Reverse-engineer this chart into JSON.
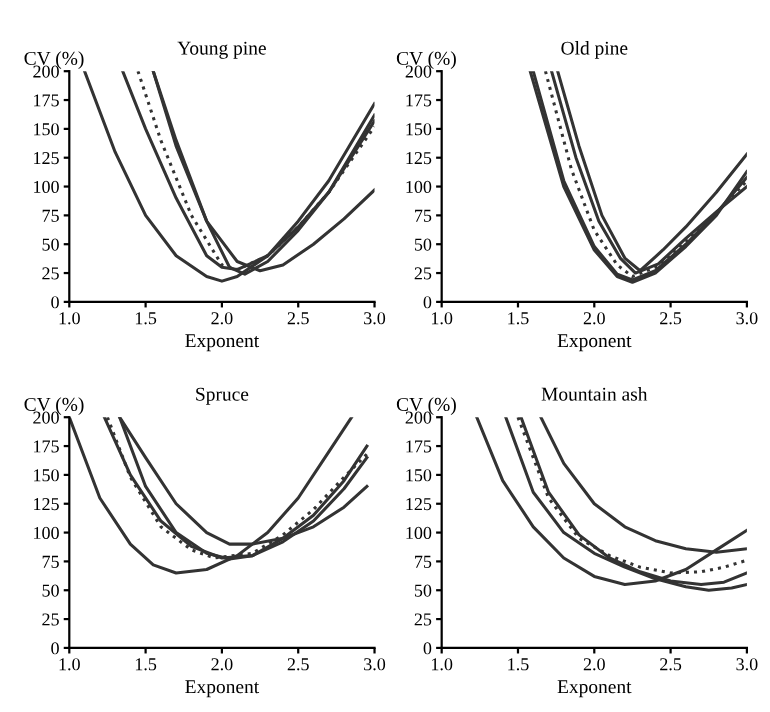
{
  "chart_data": [
    {
      "type": "line",
      "title": "Young pine",
      "xlabel": "Exponent",
      "ylabel": "CV (%)",
      "xlim": [
        1.0,
        3.0
      ],
      "xticks": [
        {
          "value": 1.0,
          "label": "1.0"
        },
        {
          "value": 1.5,
          "label": "1.5"
        },
        {
          "value": 2.0,
          "label": "2.0"
        },
        {
          "value": 2.5,
          "label": "2.5"
        },
        {
          "value": 3.0,
          "label": "3.0"
        }
      ],
      "ylim": [
        0,
        200
      ],
      "yticks": [
        0,
        25,
        50,
        75,
        100,
        125,
        150,
        175,
        200
      ],
      "grid": false,
      "legend": false,
      "series": [
        {
          "color": "#333333",
          "line_style": "solid",
          "x": [
            1.1,
            1.3,
            1.5,
            1.7,
            1.9,
            2.0,
            2.1,
            2.3,
            2.5,
            2.7,
            3.0
          ],
          "values": [
            200,
            130,
            75,
            40,
            22,
            18,
            22,
            40,
            70,
            105,
            172
          ]
        },
        {
          "color": "#333333",
          "line_style": "solid",
          "x": [
            1.35,
            1.5,
            1.7,
            1.9,
            2.0,
            2.1,
            2.3,
            2.5,
            2.7,
            3.0
          ],
          "values": [
            200,
            150,
            90,
            40,
            30,
            28,
            40,
            65,
            95,
            162
          ]
        },
        {
          "color": "#333333",
          "line_style": "dotted",
          "x": [
            1.45,
            1.6,
            1.8,
            2.0,
            2.1,
            2.3,
            2.5,
            2.7,
            3.0
          ],
          "values": [
            200,
            140,
            75,
            32,
            28,
            40,
            65,
            95,
            152
          ]
        },
        {
          "color": "#333333",
          "line_style": "solid",
          "x": [
            1.55,
            1.7,
            1.9,
            2.05,
            2.15,
            2.3,
            2.5,
            2.7,
            3.0
          ],
          "values": [
            200,
            140,
            70,
            30,
            24,
            35,
            62,
            95,
            157
          ]
        },
        {
          "color": "#333333",
          "line_style": "solid",
          "x": [
            1.55,
            1.7,
            1.9,
            2.1,
            2.25,
            2.4,
            2.6,
            2.8,
            3.0
          ],
          "values": [
            200,
            135,
            70,
            35,
            27,
            32,
            50,
            72,
            97
          ]
        }
      ]
    },
    {
      "type": "line",
      "title": "Old pine",
      "xlabel": "Exponent",
      "ylabel": "CV (%)",
      "xlim": [
        1.0,
        3.0
      ],
      "xticks": [
        {
          "value": 1.0,
          "label": "1.0"
        },
        {
          "value": 1.5,
          "label": "1.5"
        },
        {
          "value": 2.0,
          "label": "2.0"
        },
        {
          "value": 2.5,
          "label": "2.5"
        },
        {
          "value": 3.0,
          "label": "3.0"
        }
      ],
      "ylim": [
        0,
        200
      ],
      "yticks": [
        0,
        25,
        50,
        75,
        100,
        125,
        150,
        175,
        200
      ],
      "grid": false,
      "legend": false,
      "series": [
        {
          "color": "#333333",
          "line_style": "solid",
          "x": [
            1.58,
            1.8,
            2.0,
            2.15,
            2.25,
            2.4,
            2.6,
            2.8,
            3.0
          ],
          "values": [
            200,
            100,
            45,
            22,
            17,
            25,
            48,
            75,
            113
          ]
        },
        {
          "color": "#333333",
          "line_style": "solid",
          "x": [
            1.6,
            1.8,
            2.0,
            2.15,
            2.25,
            2.4,
            2.6,
            2.8,
            3.0
          ],
          "values": [
            200,
            105,
            48,
            24,
            19,
            27,
            50,
            77,
            108
          ]
        },
        {
          "color": "#333333",
          "line_style": "dotted",
          "x": [
            1.68,
            1.85,
            2.0,
            2.15,
            2.25,
            2.4,
            2.6,
            2.8,
            3.0
          ],
          "values": [
            200,
            115,
            62,
            32,
            22,
            30,
            52,
            77,
            105
          ]
        },
        {
          "color": "#333333",
          "line_style": "solid",
          "x": [
            1.72,
            1.88,
            2.03,
            2.17,
            2.27,
            2.42,
            2.6,
            2.8,
            3.0
          ],
          "values": [
            200,
            125,
            70,
            38,
            25,
            33,
            55,
            78,
            100
          ]
        },
        {
          "color": "#333333",
          "line_style": "solid",
          "x": [
            1.76,
            1.9,
            2.05,
            2.2,
            2.3,
            2.45,
            2.6,
            2.8,
            3.0
          ],
          "values": [
            200,
            135,
            75,
            38,
            27,
            45,
            65,
            95,
            128
          ]
        }
      ]
    },
    {
      "type": "line",
      "title": "Spruce",
      "xlabel": "Exponent",
      "ylabel": "CV (%)",
      "xlim": [
        1.0,
        3.0
      ],
      "xticks": [
        {
          "value": 1.0,
          "label": "1.0"
        },
        {
          "value": 1.5,
          "label": "1.5"
        },
        {
          "value": 2.0,
          "label": "2.0"
        },
        {
          "value": 2.5,
          "label": "2.5"
        },
        {
          "value": 3.0,
          "label": "3.0"
        }
      ],
      "ylim": [
        0,
        200
      ],
      "yticks": [
        0,
        25,
        50,
        75,
        100,
        125,
        150,
        175,
        200
      ],
      "grid": false,
      "legend": false,
      "series": [
        {
          "color": "#333333",
          "line_style": "solid",
          "x": [
            1.0,
            1.2,
            1.4,
            1.55,
            1.7,
            1.9,
            2.1,
            2.3,
            2.5,
            2.7,
            2.85
          ],
          "values": [
            200,
            130,
            90,
            72,
            65,
            68,
            80,
            100,
            130,
            170,
            200
          ]
        },
        {
          "color": "#333333",
          "line_style": "solid",
          "x": [
            1.23,
            1.4,
            1.6,
            1.8,
            2.0,
            2.2,
            2.4,
            2.6,
            2.8,
            2.95
          ],
          "values": [
            200,
            150,
            110,
            88,
            78,
            80,
            95,
            115,
            145,
            175
          ]
        },
        {
          "color": "#333333",
          "line_style": "dotted",
          "x": [
            1.25,
            1.4,
            1.6,
            1.8,
            1.95,
            2.2,
            2.4,
            2.6,
            2.8,
            2.95
          ],
          "values": [
            200,
            148,
            105,
            85,
            78,
            82,
            98,
            120,
            148,
            168
          ]
        },
        {
          "color": "#333333",
          "line_style": "solid",
          "x": [
            1.33,
            1.5,
            1.7,
            1.9,
            2.05,
            2.2,
            2.4,
            2.6,
            2.8,
            2.95
          ],
          "values": [
            200,
            140,
            100,
            82,
            77,
            80,
            92,
            110,
            138,
            165
          ]
        },
        {
          "color": "#333333",
          "line_style": "solid",
          "x": [
            1.33,
            1.5,
            1.7,
            1.9,
            2.05,
            2.2,
            2.4,
            2.6,
            2.8,
            2.95
          ],
          "values": [
            200,
            165,
            125,
            100,
            90,
            90,
            95,
            105,
            122,
            140
          ]
        }
      ]
    },
    {
      "type": "line",
      "title": "Mountain ash",
      "xlabel": "Exponent",
      "ylabel": "CV (%)",
      "xlim": [
        1.0,
        3.0
      ],
      "xticks": [
        {
          "value": 1.0,
          "label": "1.0"
        },
        {
          "value": 1.5,
          "label": "1.5"
        },
        {
          "value": 2.0,
          "label": "2.0"
        },
        {
          "value": 2.5,
          "label": "2.5"
        },
        {
          "value": 3.0,
          "label": "3.0"
        }
      ],
      "ylim": [
        0,
        200
      ],
      "yticks": [
        0,
        25,
        50,
        75,
        100,
        125,
        150,
        175,
        200
      ],
      "grid": false,
      "legend": false,
      "series": [
        {
          "color": "#333333",
          "line_style": "solid",
          "x": [
            1.23,
            1.4,
            1.6,
            1.8,
            2.0,
            2.2,
            2.4,
            2.6,
            2.8,
            3.0
          ],
          "values": [
            200,
            145,
            105,
            78,
            62,
            55,
            58,
            68,
            85,
            102
          ]
        },
        {
          "color": "#333333",
          "line_style": "solid",
          "x": [
            1.42,
            1.6,
            1.8,
            2.0,
            2.2,
            2.4,
            2.6,
            2.75,
            2.9,
            3.0
          ],
          "values": [
            200,
            135,
            100,
            82,
            70,
            60,
            53,
            50,
            52,
            55
          ]
        },
        {
          "color": "#333333",
          "line_style": "dotted",
          "x": [
            1.5,
            1.7,
            1.9,
            2.1,
            2.3,
            2.5,
            2.7,
            2.85,
            3.0
          ],
          "values": [
            200,
            130,
            95,
            80,
            70,
            65,
            66,
            70,
            76
          ]
        },
        {
          "color": "#333333",
          "line_style": "solid",
          "x": [
            1.52,
            1.7,
            1.9,
            2.1,
            2.3,
            2.5,
            2.7,
            2.85,
            3.0
          ],
          "values": [
            200,
            135,
            98,
            78,
            66,
            58,
            55,
            57,
            65
          ]
        },
        {
          "color": "#333333",
          "line_style": "solid",
          "x": [
            1.65,
            1.8,
            2.0,
            2.2,
            2.4,
            2.6,
            2.8,
            3.0
          ],
          "values": [
            200,
            160,
            125,
            105,
            93,
            86,
            83,
            86
          ]
        }
      ]
    }
  ]
}
